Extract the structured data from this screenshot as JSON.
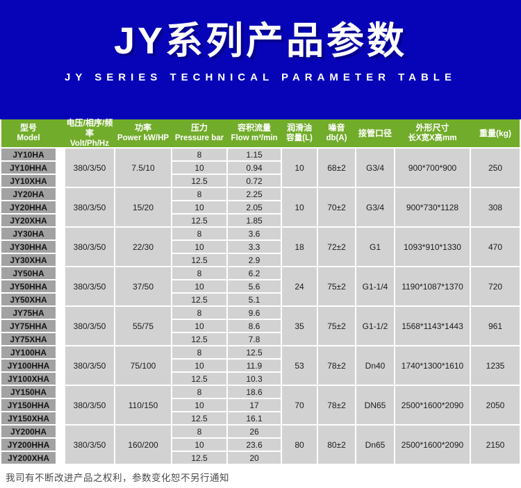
{
  "banner": {
    "title": "JY系列产品参数",
    "subtitle": "JY SERIES TECHNICAL PARAMETER TABLE"
  },
  "colors": {
    "banner_bg": "#0703b7",
    "table_header_bg": "#72ac2b",
    "model_cell_bg": "#a2a2a2",
    "data_cell_bg": "#d2d2d2"
  },
  "table": {
    "columns": [
      {
        "line1": "型号",
        "line2": "Model"
      },
      {
        "line1": "电压/相序/频率",
        "line2": "Volt/Ph/Hz"
      },
      {
        "line1": "功率",
        "line2": "Power kW/HP"
      },
      {
        "line1": "压力",
        "line2": "Pressure bar"
      },
      {
        "line1": "容积流量",
        "line2": "Flow m³/min"
      },
      {
        "line1": "润滑油",
        "line2": "容量(L)"
      },
      {
        "line1": "噪音",
        "line2": "db(A)"
      },
      {
        "line1": "接管口径",
        "line2": ""
      },
      {
        "line1": "外形尺寸",
        "line2": "长X宽X高mm"
      },
      {
        "line1": "重量(kg)",
        "line2": ""
      }
    ],
    "groups": [
      {
        "models": [
          "JY10HA",
          "JY10HHA",
          "JY10XHA"
        ],
        "voltage": "380/3/50",
        "power": "7.5/10",
        "pressures": [
          "8",
          "10",
          "12.5"
        ],
        "flows": [
          "1.15",
          "0.94",
          "0.72"
        ],
        "oil": "10",
        "noise": "68±2",
        "pipe": "G3/4",
        "dims": "900*700*900",
        "weight": "250"
      },
      {
        "models": [
          "JY20HA",
          "JY20HHA",
          "JY20XHA"
        ],
        "voltage": "380/3/50",
        "power": "15/20",
        "pressures": [
          "8",
          "10",
          "12.5"
        ],
        "flows": [
          "2.25",
          "2.05",
          "1.85"
        ],
        "oil": "10",
        "noise": "70±2",
        "pipe": "G3/4",
        "dims": "900*730*1128",
        "weight": "308"
      },
      {
        "models": [
          "JY30HA",
          "JY30HHA",
          "JY30XHA"
        ],
        "voltage": "380/3/50",
        "power": "22/30",
        "pressures": [
          "8",
          "10",
          "12.5"
        ],
        "flows": [
          "3.6",
          "3.3",
          "2.9"
        ],
        "oil": "18",
        "noise": "72±2",
        "pipe": "G1",
        "dims": "1093*910*1330",
        "weight": "470"
      },
      {
        "models": [
          "JY50HA",
          "JY50HHA",
          "JY50XHA"
        ],
        "voltage": "380/3/50",
        "power": "37/50",
        "pressures": [
          "8",
          "10",
          "12.5"
        ],
        "flows": [
          "6.2",
          "5.6",
          "5.1"
        ],
        "oil": "24",
        "noise": "75±2",
        "pipe": "G1-1/4",
        "dims": "1190*1087*1370",
        "weight": "720"
      },
      {
        "models": [
          "JY75HA",
          "JY75HHA",
          "JY75XHA"
        ],
        "voltage": "380/3/50",
        "power": "55/75",
        "pressures": [
          "8",
          "10",
          "12.5"
        ],
        "flows": [
          "9.6",
          "8.6",
          "7.8"
        ],
        "oil": "35",
        "noise": "75±2",
        "pipe": "G1-1/2",
        "dims": "1568*1143*1443",
        "weight": "961"
      },
      {
        "models": [
          "JY100HA",
          "JY100HHA",
          "JY100XHA"
        ],
        "voltage": "380/3/50",
        "power": "75/100",
        "pressures": [
          "8",
          "10",
          "12.5"
        ],
        "flows": [
          "12.5",
          "11.9",
          "10.3"
        ],
        "oil": "53",
        "noise": "78±2",
        "pipe": "Dn40",
        "dims": "1740*1300*1610",
        "weight": "1235"
      },
      {
        "models": [
          "JY150HA",
          "JY150HHA",
          "JY150XHA"
        ],
        "voltage": "380/3/50",
        "power": "110/150",
        "pressures": [
          "8",
          "10",
          "12.5"
        ],
        "flows": [
          "18.6",
          "17",
          "16.1"
        ],
        "oil": "70",
        "noise": "78±2",
        "pipe": "DN65",
        "dims": "2500*1600*2090",
        "weight": "2050"
      },
      {
        "models": [
          "JY200HA",
          "JY200HHA",
          "JY200XHA"
        ],
        "voltage": "380/3/50",
        "power": "160/200",
        "pressures": [
          "8",
          "10",
          "12.5"
        ],
        "flows": [
          "26",
          "23.6",
          "20"
        ],
        "oil": "80",
        "noise": "80±2",
        "pipe": "Dn65",
        "dims": "2500*1600*2090",
        "weight": "2150"
      }
    ]
  },
  "footer": {
    "note": "我司有不断改进产品之权利，参数变化恕不另行通知"
  }
}
